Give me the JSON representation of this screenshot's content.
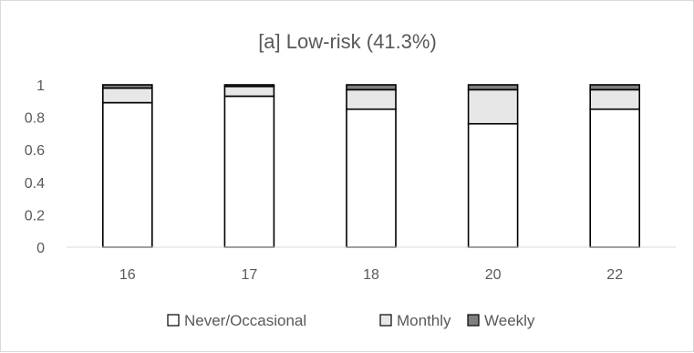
{
  "chart_data": {
    "type": "bar",
    "stacked": true,
    "title": "[a] Low-risk (41.3%)",
    "xlabel": "",
    "ylabel": "",
    "categories": [
      "16",
      "17",
      "18",
      "20",
      "22"
    ],
    "ylim": [
      0,
      1
    ],
    "yticks": [
      "0",
      "0.2",
      "0.4",
      "0.6",
      "0.8",
      "1"
    ],
    "grid": false,
    "legend_position": "bottom",
    "series": [
      {
        "name": "Never/Occasional",
        "values": [
          0.89,
          0.93,
          0.85,
          0.76,
          0.85
        ],
        "color": "#ffffff"
      },
      {
        "name": "Monthly",
        "values": [
          0.09,
          0.06,
          0.12,
          0.21,
          0.12
        ],
        "color": "#e7e7e7"
      },
      {
        "name": "Weekly",
        "values": [
          0.02,
          0.01,
          0.03,
          0.03,
          0.03
        ],
        "color": "#7f7f7f"
      }
    ]
  }
}
